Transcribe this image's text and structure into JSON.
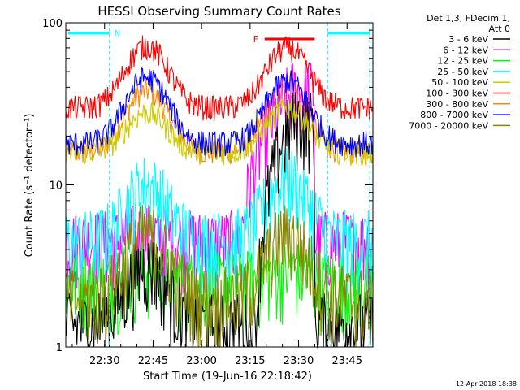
{
  "chart_data": {
    "type": "line",
    "title": "HESSI Observing Summary Count Rates",
    "xlabel": "Start Time (19-Jun-16 22:18:42)",
    "ylabel": "Count Rate (s⁻¹ detector⁻¹)",
    "yscale": "log",
    "ylim": [
      1,
      100
    ],
    "xlim_minutes": [
      22.3,
      23.883
    ],
    "x_ticks": [
      "22:30",
      "22:45",
      "23:00",
      "23:15",
      "23:30",
      "23:45"
    ],
    "y_ticks": [
      "1",
      "10",
      "100"
    ],
    "grid": false,
    "legend_position": "top-right outside",
    "legend_header": [
      "Det 1,3, FDecim 1,",
      "Att 0"
    ],
    "timestamp": "12-Apr-2018 18:38",
    "annotations": {
      "night_label": "N",
      "flare_label": "F",
      "night_intervals": [
        [
          "22:18:42",
          "22:31:30"
        ],
        [
          "23:39:00",
          "23:52:00"
        ]
      ],
      "flare_interval": [
        "23:19:30",
        "23:35:00"
      ],
      "vertical_markers": [
        "22:31:30",
        "23:39:00",
        "23:52:00"
      ]
    },
    "series": [
      {
        "name": "3 - 6 keV",
        "color": "#000000",
        "profile": {
          "base": 1.4,
          "peak1": 3.2,
          "peak2": 25,
          "p2_start": "23:17",
          "drop": "23:35"
        }
      },
      {
        "name": "6 - 12 keV",
        "color": "#ff00ff",
        "profile": {
          "base": 4.5,
          "peak1": 5.0,
          "peak2": 38,
          "p2_start": "23:12",
          "drop": "23:35"
        }
      },
      {
        "name": "12 - 25 keV",
        "color": "#00ff00",
        "profile": {
          "base": 2.5,
          "peak1": 3.0,
          "peak2": 3.0
        }
      },
      {
        "name": "25 - 50 keV",
        "color": "#00ffff",
        "profile": {
          "base": 4.5,
          "peak1": 10,
          "peak2": 11
        }
      },
      {
        "name": "50 - 100 keV",
        "color": "#cccc00",
        "profile": {
          "base": 16,
          "peak1": 28,
          "peak2": 30
        }
      },
      {
        "name": "100 - 300 keV",
        "color": "#ff0000",
        "profile": {
          "base": 30,
          "peak1": 72,
          "peak2": 70
        }
      },
      {
        "name": "300 - 800 keV",
        "color": "#ff8800",
        "profile": {
          "base": 16,
          "peak1": 38,
          "peak2": 38
        }
      },
      {
        "name": "800 - 7000 keV",
        "color": "#0000ff",
        "profile": {
          "base": 18,
          "peak1": 46,
          "peak2": 44
        }
      },
      {
        "name": "7000 - 20000 keV",
        "color": "#888800",
        "profile": {
          "base": 2.0,
          "peak1": 5.0,
          "peak2": 5.0
        }
      }
    ]
  }
}
